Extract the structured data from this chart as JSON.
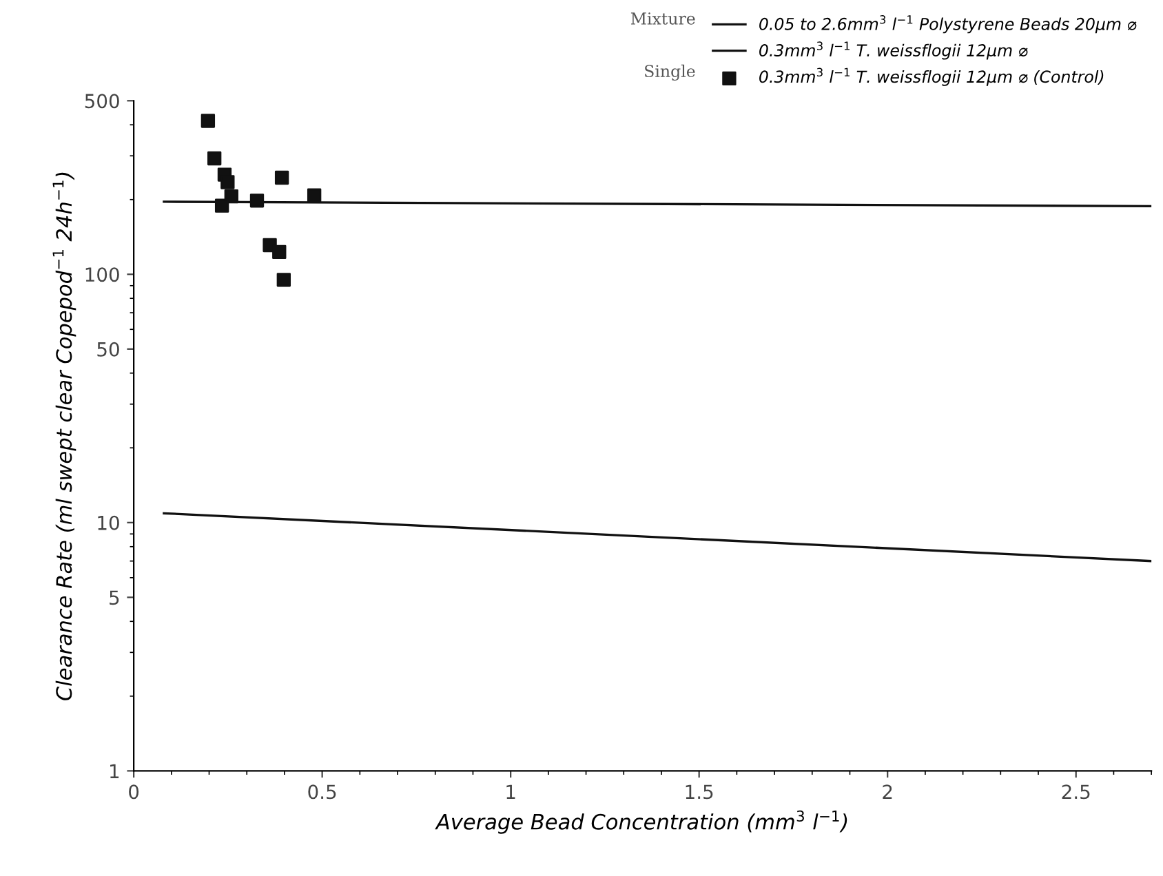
{
  "chart_data": {
    "type": "scatter",
    "xlabel": "Average Bead Concentration (mm$^{3}$ l$^{−1}$)",
    "ylabel": "Clearance Rate (ml swept clear Copepod$^{−1}$ 24h$^{−1}$)",
    "annotations": [
      "Mixture",
      "Single"
    ],
    "series": [
      {
        "name": "0.05 to 2.6mm$^{3}$ l$^{−1}$ Polystyrene Beads 20μm ⌀",
        "type": "line",
        "color": "#111111",
        "line_style": "solid",
        "marker": "none",
        "x": [
          0.08,
          2.7
        ],
        "values": [
          10.9,
          7.0
        ]
      },
      {
        "name": "0.3mm$^{3}$ l$^{−1}$ T. weissflogii 12μm ⌀",
        "type": "line",
        "color": "#111111",
        "line_style": "solid",
        "marker": "none",
        "x": [
          0.08,
          2.7
        ],
        "values": [
          196,
          188
        ]
      },
      {
        "name": "0.3mm$^{3}$ l$^{−1}$ T. weissflogii 12μm ⌀ (Control)",
        "color": "#111111",
        "marker": "square",
        "x": [
          0.197,
          0.214,
          0.241,
          0.249,
          0.259,
          0.234,
          0.327,
          0.393,
          0.479,
          0.361,
          0.386,
          0.398
        ],
        "values": [
          415,
          293,
          252,
          235,
          206,
          189,
          198,
          245,
          208,
          131,
          123,
          95
        ]
      }
    ],
    "xlim": [
      0,
      2.7
    ],
    "xticks": [
      0,
      0.5,
      1,
      1.5,
      2,
      2.5
    ],
    "ylim": [
      1,
      500
    ],
    "yticks": [
      1,
      5,
      10,
      50,
      100,
      500
    ],
    "log": "y",
    "grid": false,
    "legend": "top right"
  }
}
